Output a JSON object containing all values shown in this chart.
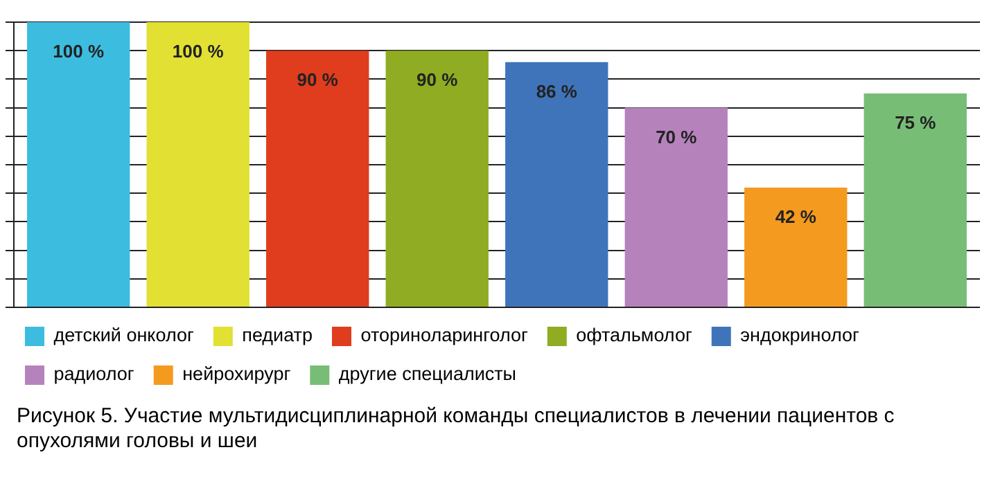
{
  "chart_data": {
    "type": "bar",
    "title": "Рисунок 5. Участие мультидисциплинарной команды специалистов в лечении пациентов с опухолями головы и шеи",
    "categories": [
      null
    ],
    "series": [
      {
        "name": "детский онколог",
        "color": "#3cbde0",
        "values": [
          100
        ],
        "value_labels": [
          "100 %"
        ]
      },
      {
        "name": "педиатр",
        "color": "#e2e032",
        "values": [
          100
        ],
        "value_labels": [
          "100 %"
        ]
      },
      {
        "name": "оториноларинголог",
        "color": "#e03c1e",
        "values": [
          90
        ],
        "value_labels": [
          "90 %"
        ]
      },
      {
        "name": "офтальмолог",
        "color": "#8fac22",
        "values": [
          90
        ],
        "value_labels": [
          "90 %"
        ]
      },
      {
        "name": "эндокринолог",
        "color": "#3f74ba",
        "values": [
          86
        ],
        "value_labels": [
          "86 %"
        ]
      },
      {
        "name": "радиолог",
        "color": "#b682bc",
        "values": [
          70
        ],
        "value_labels": [
          "70 %"
        ]
      },
      {
        "name": "нейрохирург",
        "color": "#f49a1f",
        "values": [
          42
        ],
        "value_labels": [
          "42 %"
        ]
      },
      {
        "name": "другие специалисты",
        "color": "#77bd76",
        "values": [
          75
        ],
        "value_labels": [
          "75 %"
        ]
      }
    ],
    "grid": "y",
    "legend": "bottom",
    "tick_labels": false
  }
}
